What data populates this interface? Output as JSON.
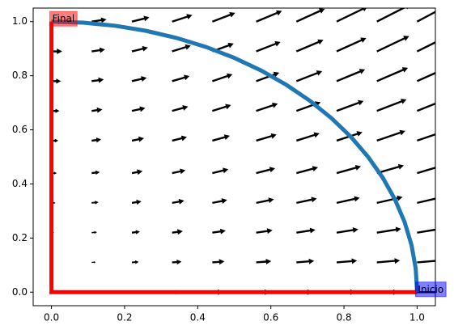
{
  "chart_data": {
    "type": "quiver",
    "xlim": [
      -0.05,
      1.05
    ],
    "ylim": [
      -0.05,
      1.05
    ],
    "xticks": [
      {
        "value": 0,
        "label": "0.0"
      },
      {
        "value": 0.2,
        "label": "0.2"
      },
      {
        "value": 0.4,
        "label": "0.4"
      },
      {
        "value": 0.6,
        "label": "0.6"
      },
      {
        "value": 0.8,
        "label": "0.8"
      },
      {
        "value": 1,
        "label": "1.0"
      }
    ],
    "yticks": [
      {
        "value": 0,
        "label": "0.0"
      },
      {
        "value": 0.2,
        "label": "0.2"
      },
      {
        "value": 0.4,
        "label": "0.4"
      },
      {
        "value": 0.6,
        "label": "0.6"
      },
      {
        "value": 0.8,
        "label": "0.8"
      },
      {
        "value": 1,
        "label": "1.0"
      }
    ],
    "quiver": {
      "color": "#000000",
      "x": [
        0,
        0.11,
        0.22,
        0.33,
        0.44,
        0.56,
        0.67,
        0.78,
        0.89,
        1.0
      ],
      "y": [
        0,
        0.11,
        0.22,
        0.33,
        0.44,
        0.56,
        0.67,
        0.78,
        0.89,
        1.0
      ],
      "u": [
        [
          0,
          0.11,
          0.22,
          0.33,
          0.44,
          0.56,
          0.67,
          0.78,
          0.89,
          1.0
        ],
        [
          0.06,
          0.17,
          0.28,
          0.39,
          0.5,
          0.62,
          0.73,
          0.84,
          0.95,
          1.06
        ],
        [
          0.11,
          0.22,
          0.33,
          0.44,
          0.55,
          0.67,
          0.78,
          0.89,
          1.0,
          1.11
        ],
        [
          0.17,
          0.28,
          0.39,
          0.5,
          0.61,
          0.73,
          0.84,
          0.95,
          1.06,
          1.17
        ],
        [
          0.22,
          0.33,
          0.44,
          0.55,
          0.66,
          0.78,
          0.89,
          1.0,
          1.11,
          1.22
        ],
        [
          0.28,
          0.39,
          0.5,
          0.61,
          0.72,
          0.84,
          0.95,
          1.06,
          1.17,
          1.28
        ],
        [
          0.33,
          0.44,
          0.55,
          0.66,
          0.77,
          0.89,
          1.0,
          1.11,
          1.22,
          1.33
        ],
        [
          0.39,
          0.5,
          0.61,
          0.72,
          0.83,
          0.95,
          1.06,
          1.17,
          1.28,
          1.39
        ],
        [
          0.44,
          0.55,
          0.66,
          0.77,
          0.88,
          1.0,
          1.11,
          1.22,
          1.33,
          1.44
        ],
        [
          0.5,
          0.61,
          0.72,
          0.83,
          0.94,
          1.06,
          1.17,
          1.28,
          1.39,
          1.5
        ]
      ],
      "v": [
        [
          0,
          0,
          0,
          0,
          0,
          0,
          0,
          0,
          0,
          0
        ],
        [
          0,
          0.01,
          0.02,
          0.03,
          0.04,
          0.05,
          0.06,
          0.07,
          0.08,
          0.09
        ],
        [
          0,
          0.02,
          0.04,
          0.06,
          0.08,
          0.1,
          0.12,
          0.14,
          0.16,
          0.18
        ],
        [
          0,
          0.03,
          0.06,
          0.09,
          0.12,
          0.15,
          0.18,
          0.21,
          0.24,
          0.27
        ],
        [
          0,
          0.04,
          0.08,
          0.12,
          0.16,
          0.2,
          0.24,
          0.28,
          0.32,
          0.36
        ],
        [
          0,
          0.05,
          0.1,
          0.15,
          0.2,
          0.25,
          0.3,
          0.35,
          0.4,
          0.44
        ],
        [
          0,
          0.06,
          0.12,
          0.18,
          0.24,
          0.3,
          0.36,
          0.41,
          0.47,
          0.53
        ],
        [
          0,
          0.07,
          0.14,
          0.21,
          0.28,
          0.35,
          0.41,
          0.48,
          0.55,
          0.62
        ],
        [
          0,
          0.08,
          0.16,
          0.24,
          0.32,
          0.39,
          0.47,
          0.55,
          0.63,
          0.71
        ],
        [
          0,
          0.09,
          0.18,
          0.27,
          0.36,
          0.44,
          0.53,
          0.62,
          0.71,
          0.8
        ]
      ]
    },
    "series": [
      {
        "color": "#1f77b4",
        "x": [
          1,
          0.9962,
          0.9848,
          0.9659,
          0.9397,
          0.9063,
          0.866,
          0.8192,
          0.766,
          0.7071,
          0.6428,
          0.5736,
          0.5,
          0.4226,
          0.342,
          0.2588,
          0.1736,
          0.0872,
          0
        ],
        "y": [
          0,
          0.0872,
          0.1736,
          0.2588,
          0.342,
          0.4226,
          0.5,
          0.5736,
          0.6428,
          0.7071,
          0.766,
          0.8192,
          0.866,
          0.9063,
          0.9397,
          0.9659,
          0.9848,
          0.9962,
          1
        ]
      },
      {
        "color": "#ff0000",
        "x": [
          1,
          0,
          0
        ],
        "y": [
          0,
          0,
          1
        ]
      }
    ],
    "annotations": [
      {
        "text": "Final",
        "x": 0,
        "y": 1,
        "color": "#ff0000"
      },
      {
        "text": "Inicio",
        "x": 1,
        "y": 0,
        "color": "#0000ff"
      }
    ]
  }
}
